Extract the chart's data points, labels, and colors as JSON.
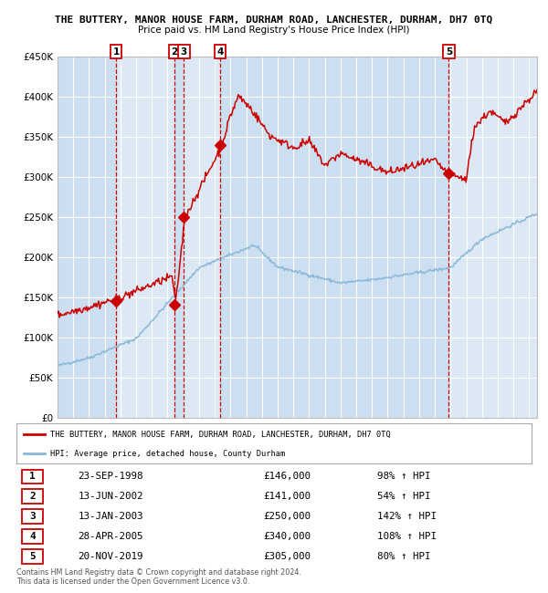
{
  "title": "THE BUTTERY, MANOR HOUSE FARM, DURHAM ROAD, LANCHESTER, DURHAM, DH7 0TQ",
  "subtitle": "Price paid vs. HM Land Registry's House Price Index (HPI)",
  "ylim": [
    0,
    450000
  ],
  "yticks": [
    0,
    50000,
    100000,
    150000,
    200000,
    250000,
    300000,
    350000,
    400000,
    450000
  ],
  "ytick_labels": [
    "£0",
    "£50K",
    "£100K",
    "£150K",
    "£200K",
    "£250K",
    "£300K",
    "£350K",
    "£400K",
    "£450K"
  ],
  "background_color": "#ffffff",
  "plot_background": "#dce9f5",
  "grid_color": "#ffffff",
  "sale_color": "#cc0000",
  "hpi_color": "#8ab8d8",
  "dashed_line_color": "#cc0000",
  "purchases": [
    {
      "label": "1",
      "date_num": 1998.73,
      "price": 146000
    },
    {
      "label": "2",
      "date_num": 2002.44,
      "price": 141000
    },
    {
      "label": "3",
      "date_num": 2003.04,
      "price": 250000
    },
    {
      "label": "4",
      "date_num": 2005.33,
      "price": 340000
    },
    {
      "label": "5",
      "date_num": 2019.89,
      "price": 305000
    }
  ],
  "legend_sale_label": "THE BUTTERY, MANOR HOUSE FARM, DURHAM ROAD, LANCHESTER, DURHAM, DH7 0TQ",
  "legend_hpi_label": "HPI: Average price, detached house, County Durham",
  "table_rows": [
    [
      "1",
      "23-SEP-1998",
      "£146,000",
      "98% ↑ HPI"
    ],
    [
      "2",
      "13-JUN-2002",
      "£141,000",
      "54% ↑ HPI"
    ],
    [
      "3",
      "13-JAN-2003",
      "£250,000",
      "142% ↑ HPI"
    ],
    [
      "4",
      "28-APR-2005",
      "£340,000",
      "108% ↑ HPI"
    ],
    [
      "5",
      "20-NOV-2019",
      "£305,000",
      "80% ↑ HPI"
    ]
  ],
  "footnote": "Contains HM Land Registry data © Crown copyright and database right 2024.\nThis data is licensed under the Open Government Licence v3.0.",
  "xmin": 1995.0,
  "xmax": 2025.5
}
